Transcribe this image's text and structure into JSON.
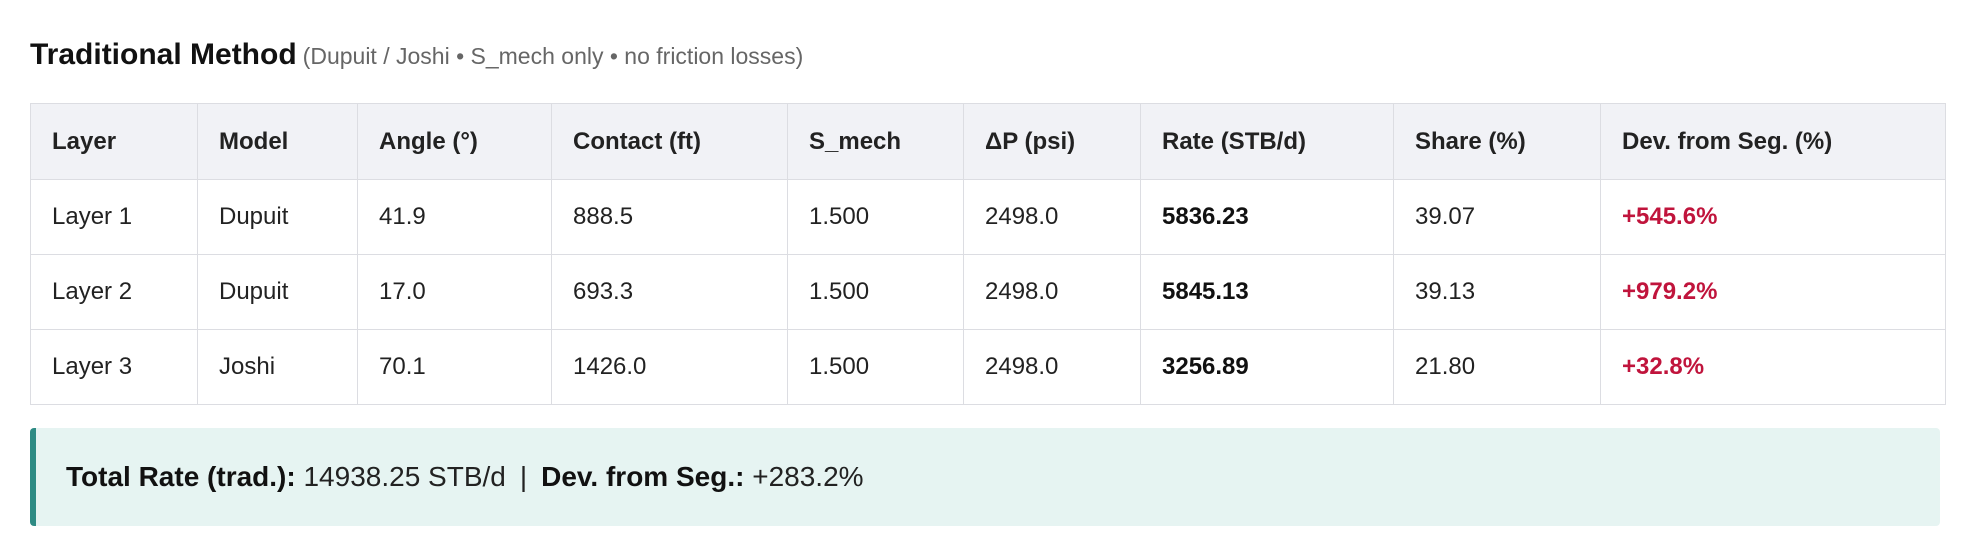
{
  "header": {
    "title": "Traditional Method",
    "subtitle": "(Dupuit / Joshi • S_mech only • no friction losses)"
  },
  "table": {
    "columns": [
      "Layer",
      "Model",
      "Angle (°)",
      "Contact (ft)",
      "S_mech",
      "ΔP (psi)",
      "Rate (STB/d)",
      "Share (%)",
      "Dev. from Seg. (%)"
    ],
    "rows": [
      [
        "Layer 1",
        "Dupuit",
        "41.9",
        "888.5",
        "1.500",
        "2498.0",
        "5836.23",
        "39.07",
        "+545.6%"
      ],
      [
        "Layer 2",
        "Dupuit",
        "17.0",
        "693.3",
        "1.500",
        "2498.0",
        "5845.13",
        "39.13",
        "+979.2%"
      ],
      [
        "Layer 3",
        "Joshi",
        "70.1",
        "1426.0",
        "1.500",
        "2498.0",
        "3256.89",
        "21.80",
        "+32.8%"
      ]
    ]
  },
  "summary": {
    "total_label": "Total Rate (trad.):",
    "total_value": "14938.25 STB/d",
    "separator": "|",
    "dev_label": "Dev. from Seg.:",
    "dev_value": "+283.2%"
  }
}
